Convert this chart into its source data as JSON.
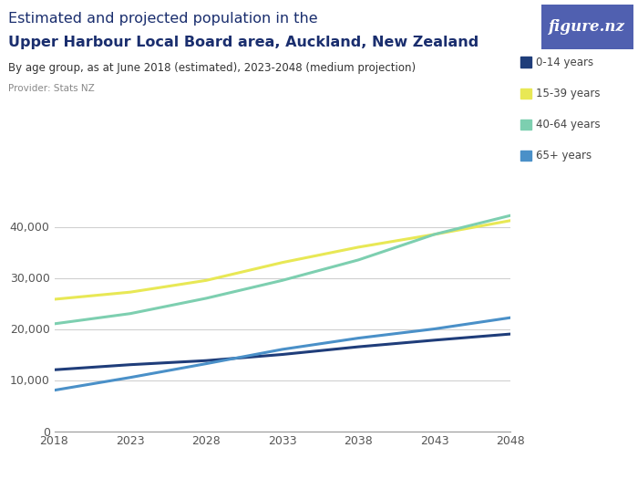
{
  "title_line1": "Estimated and projected population in the",
  "title_line2": "Upper Harbour Local Board area, Auckland, New Zealand",
  "subtitle": "By age group, as at June 2018 (estimated), 2023-2048 (medium projection)",
  "provider": "Provider: Stats NZ",
  "years": [
    2018,
    2023,
    2028,
    2033,
    2038,
    2043,
    2048
  ],
  "series": {
    "0-14 years": {
      "color": "#1f3d7a",
      "values": [
        12000,
        13000,
        13800,
        15000,
        16500,
        17800,
        19000
      ]
    },
    "15-39 years": {
      "color": "#e8e855",
      "values": [
        25800,
        27200,
        29500,
        33000,
        36000,
        38500,
        41200
      ]
    },
    "40-64 years": {
      "color": "#7dcfb0",
      "values": [
        21000,
        23000,
        26000,
        29500,
        33500,
        38500,
        42200
      ]
    },
    "65+ years": {
      "color": "#4a90c8",
      "values": [
        8000,
        10500,
        13200,
        16000,
        18200,
        20000,
        22200
      ]
    }
  },
  "legend_order": [
    "0-14 years",
    "15-39 years",
    "40-64 years",
    "65+ years"
  ],
  "xlim": [
    2018,
    2048
  ],
  "ylim": [
    0,
    45000
  ],
  "yticks": [
    0,
    10000,
    20000,
    30000,
    40000
  ],
  "xticks": [
    2018,
    2023,
    2028,
    2033,
    2038,
    2043,
    2048
  ],
  "grid_color": "#d0d0d0",
  "background_color": "#ffffff",
  "logo_bg_color": "#5060b0",
  "logo_text": "figure.nz",
  "title_color": "#1a2e6e",
  "subtitle_color": "#333333",
  "provider_color": "#888888",
  "tick_color": "#555555"
}
